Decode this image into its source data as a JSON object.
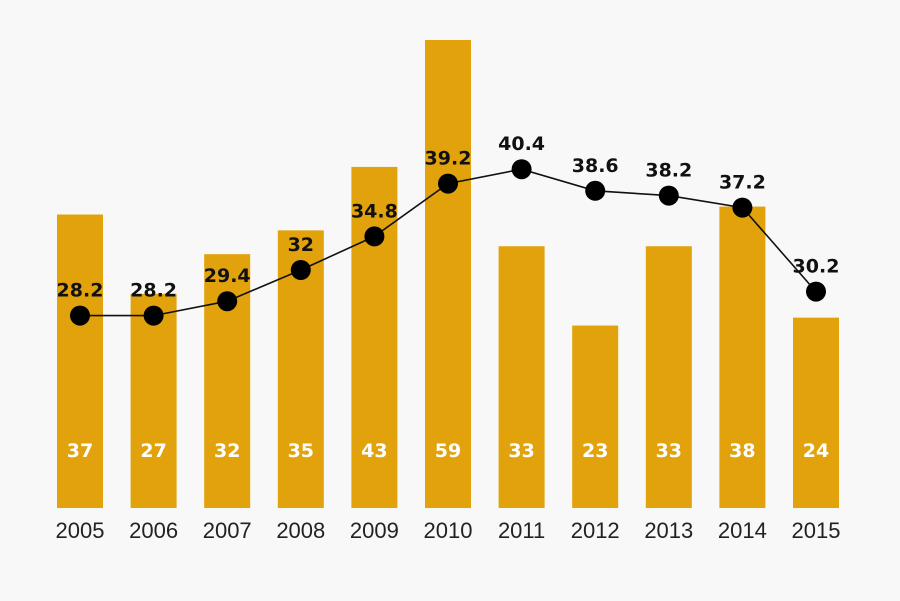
{
  "chart_data": {
    "type": "bar",
    "title": "",
    "xlabel": "",
    "ylabel": "",
    "categories": [
      "2005",
      "2006",
      "2007",
      "2008",
      "2009",
      "2010",
      "2011",
      "2012",
      "2013",
      "2014",
      "2015"
    ],
    "series": [
      {
        "name": "bars",
        "type": "bar",
        "values": [
          37,
          27,
          32,
          35,
          43,
          59,
          33,
          23,
          33,
          38,
          24
        ],
        "color": "#e2a20c"
      },
      {
        "name": "line",
        "type": "line",
        "values": [
          28.2,
          28.2,
          29.4,
          32,
          34.8,
          39.2,
          40.4,
          38.6,
          38.2,
          37.2,
          30.2
        ],
        "color": "#000000"
      }
    ],
    "bar_ylim": [
      0,
      59
    ],
    "line_ylim": [
      20,
      43
    ],
    "grid": false,
    "legend": "none"
  }
}
